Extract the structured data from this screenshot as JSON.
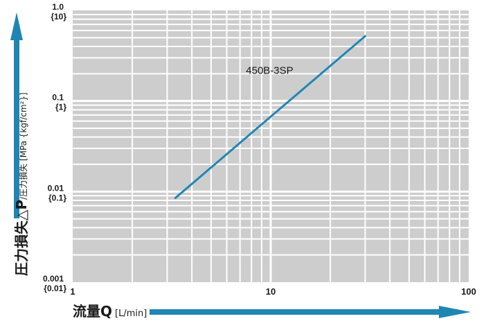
{
  "chart_data": {
    "type": "line",
    "title": "",
    "xlabel": "流量Q",
    "xunit": "[L/min]",
    "ylabel": "圧力損失△P",
    "yunit": "/圧力損失 [MPa {kgf/cm²}]",
    "x_scale": "log",
    "y_scale": "log",
    "xlim": [
      1,
      100
    ],
    "ylim": [
      0.001,
      1.0
    ],
    "grid": true,
    "x_ticks": [
      {
        "value": 1,
        "label": "1"
      },
      {
        "value": 10,
        "label": "10"
      },
      {
        "value": 100,
        "label": "100"
      }
    ],
    "y_ticks": [
      {
        "value": 1.0,
        "label": "1.0",
        "sublabel": "{10}"
      },
      {
        "value": 0.1,
        "label": "0.1",
        "sublabel": "{1}"
      },
      {
        "value": 0.01,
        "label": "0.01",
        "sublabel": "{0.1}"
      },
      {
        "value": 0.001,
        "label": "0.001",
        "sublabel": "{0.01}"
      }
    ],
    "series": [
      {
        "name": "450B-3SP",
        "color": "#1f86b4",
        "x": [
          3.3,
          30
        ],
        "y": [
          0.0085,
          0.52
        ]
      }
    ]
  },
  "colors": {
    "plot_background": "#cdcdcd",
    "grid": "#ffffff",
    "arrow": "#1f86b4",
    "text": "#1a1a1a"
  }
}
